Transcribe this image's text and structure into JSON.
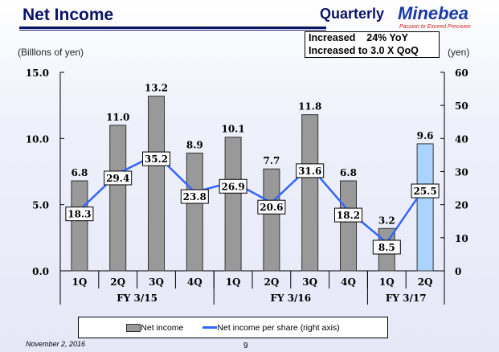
{
  "header": {
    "title": "Net Income",
    "section": "Quarterly",
    "logo": "Minebea",
    "tagline": "Passion to Exceed Precision"
  },
  "callout": {
    "line1": "Increased    24% YoY",
    "line2": "Increased to 3.0 X QoQ"
  },
  "footer": {
    "date": "November 2, 2016",
    "page": "9"
  },
  "colors": {
    "bar": "#999999",
    "bar_highlight": "#a9d4ff",
    "line": "#3366ff"
  },
  "chart_data": {
    "type": "bar",
    "ylabel": "(Billlons of yen)",
    "y2label": "(yen)",
    "ylim": [
      0,
      15
    ],
    "y2lim": [
      0,
      60
    ],
    "yticks": [
      "0.0",
      "5.0",
      "10.0",
      "15.0"
    ],
    "y2ticks": [
      "0",
      "10",
      "20",
      "30",
      "40",
      "50",
      "60"
    ],
    "categories": [
      "1Q",
      "2Q",
      "3Q",
      "4Q",
      "1Q",
      "2Q",
      "3Q",
      "4Q",
      "1Q",
      "2Q"
    ],
    "groups": [
      {
        "label": "FY 3/15",
        "count": 4
      },
      {
        "label": "FY 3/16",
        "count": 4
      },
      {
        "label": "FY 3/17",
        "count": 2
      }
    ],
    "series": [
      {
        "name": "Net income",
        "type": "bar",
        "axis": "left",
        "values": [
          6.8,
          11.0,
          13.2,
          8.9,
          10.1,
          7.7,
          11.8,
          6.8,
          3.2,
          9.6
        ],
        "labels": [
          "6.8",
          "11.0",
          "13.2",
          "8.9",
          "10.1",
          "7.7",
          "11.8",
          "6.8",
          "3.2",
          "9.6"
        ]
      },
      {
        "name": "Net income per share (right axis)",
        "type": "line",
        "axis": "right",
        "values": [
          18.3,
          29.4,
          35.2,
          23.8,
          26.9,
          20.6,
          31.6,
          18.2,
          8.5,
          25.5
        ],
        "labels": [
          "18.3",
          "29.4",
          "35.2",
          "23.8",
          "26.9",
          "20.6",
          "31.6",
          "18.2",
          "8.5",
          "25.5"
        ]
      }
    ]
  }
}
